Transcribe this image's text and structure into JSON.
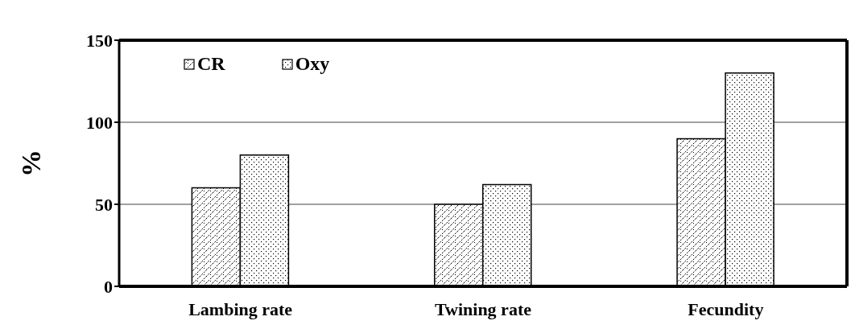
{
  "chart_data": {
    "type": "bar",
    "ylabel": "%",
    "categories": [
      "Lambing rate",
      "Twining rate",
      "Fecundity"
    ],
    "series": [
      {
        "name": "CR",
        "color": "#000000",
        "values": [
          60,
          50,
          90
        ]
      },
      {
        "name": "Oxy",
        "color": "#000000",
        "values": [
          80,
          62,
          130
        ]
      }
    ],
    "ylim": [
      0,
      150
    ],
    "yticks": [
      0,
      50,
      100,
      150
    ],
    "grid": "y",
    "legend": "top left"
  }
}
